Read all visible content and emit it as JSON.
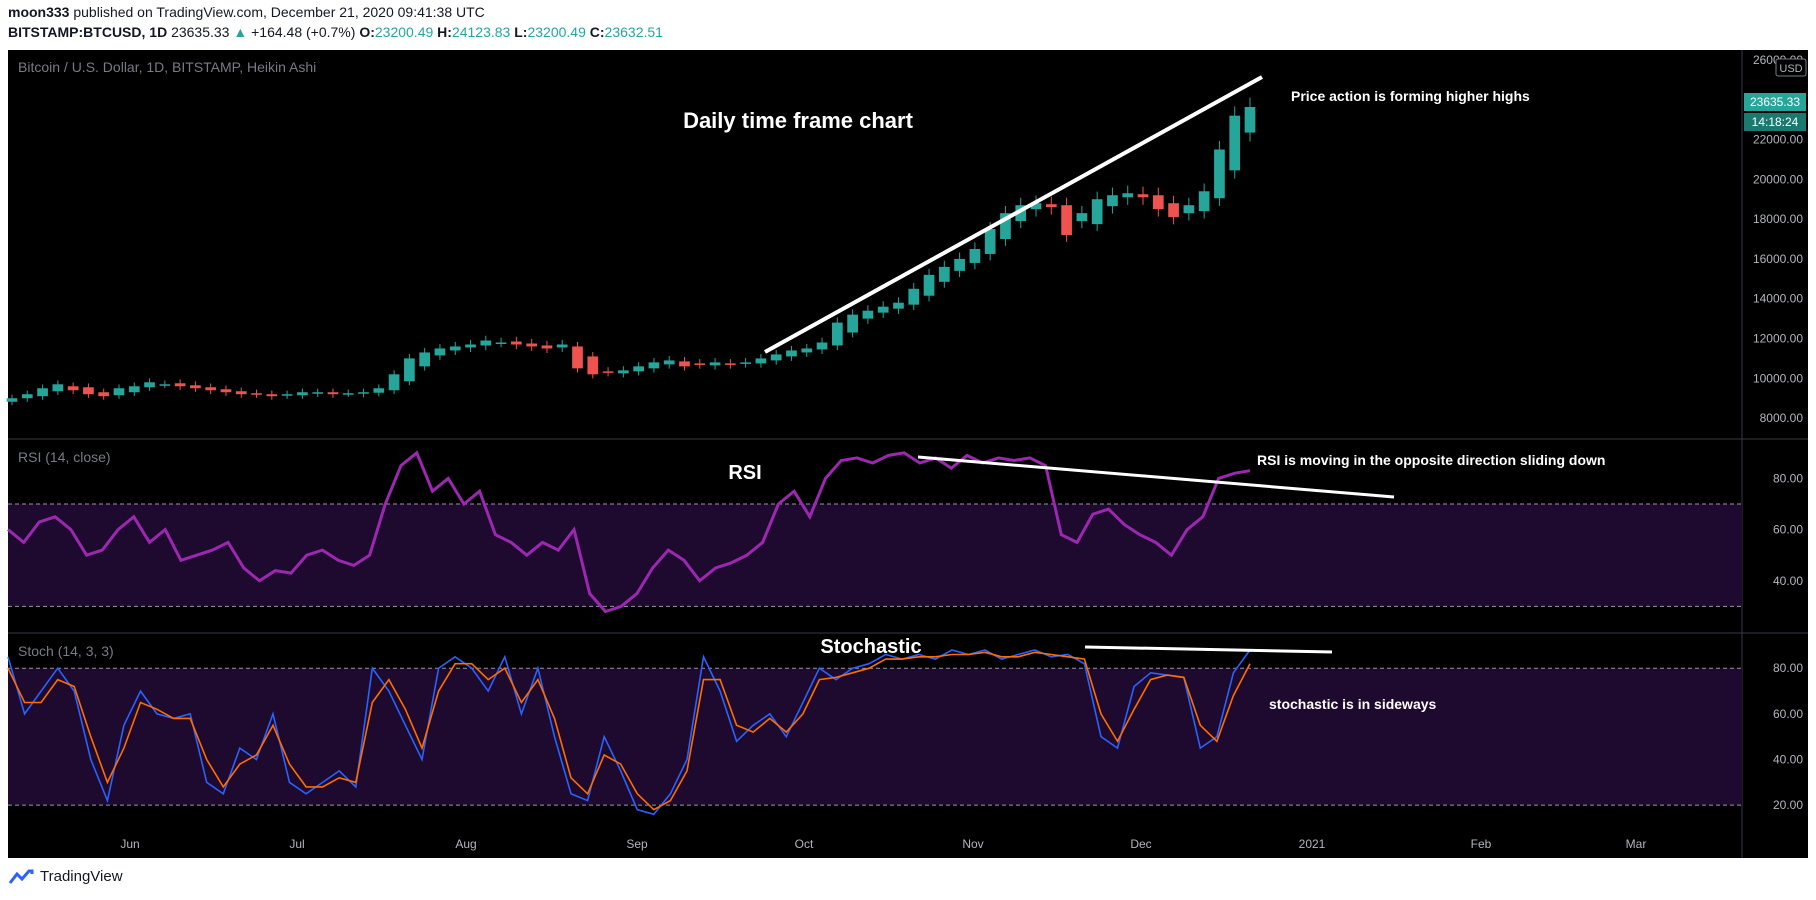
{
  "header": {
    "user": "moon333",
    "published": "published on TradingView.com, December 21, 2020 09:41:38 UTC",
    "symbol": "BITSTAMP:BTCUSD, 1D",
    "last": "23635.33",
    "change_arrow": "▲",
    "change": "+164.48 (+0.7%)",
    "o_label": "O:",
    "o": "23200.49",
    "h_label": "H:",
    "h": "24123.83",
    "l_label": "L:",
    "l": "23200.49",
    "c_label": "C:",
    "c": "23632.51"
  },
  "footer": {
    "brand": "TradingView"
  },
  "colors": {
    "up": "#26a69a",
    "down": "#ef5350",
    "rsi": "#9c27b0",
    "stoch_k": "#2962ff",
    "stoch_d": "#ff6d00",
    "band": "#1e0a2e"
  },
  "chart_data": [
    {
      "type": "candlestick",
      "title": "Bitcoin / U.S. Dollar, 1D, BITSTAMP, Heikin Ashi",
      "annotation_title": "Daily time frame chart",
      "annotation_note": "Price action is forming higher highs",
      "x_ticks": [
        "Jun",
        "Jul",
        "Aug",
        "Sep",
        "Oct",
        "Nov",
        "Dec",
        "2021",
        "Feb",
        "Mar"
      ],
      "y_ticks": [
        "8000.00",
        "10000.00",
        "12000.00",
        "14000.00",
        "16000.00",
        "18000.00",
        "20000.00",
        "22000.00",
        "26000.00"
      ],
      "ylim": [
        7000,
        26500
      ],
      "currency_label": "USD",
      "price_label": "23635.33",
      "countdown_label": "14:18:24",
      "close_series": [
        9000,
        9200,
        9500,
        9700,
        9400,
        9200,
        9100,
        9500,
        9600,
        9800,
        9700,
        9600,
        9500,
        9400,
        9300,
        9200,
        9200,
        9100,
        9200,
        9300,
        9300,
        9200,
        9250,
        9300,
        9500,
        10200,
        11000,
        11300,
        11500,
        11600,
        11700,
        11900,
        11800,
        11700,
        11600,
        11500,
        11700,
        10500,
        10200,
        10300,
        10400,
        10600,
        10800,
        10900,
        10600,
        10700,
        10800,
        10700,
        10800,
        11000,
        11200,
        11400,
        11500,
        11800,
        12800,
        13200,
        13400,
        13600,
        13800,
        14500,
        15200,
        15600,
        16000,
        16500,
        17500,
        18300,
        18700,
        18800,
        18600,
        17200,
        18300,
        19000,
        19200,
        19300,
        19100,
        18500,
        18100,
        18700,
        19400,
        21500,
        23200,
        23635
      ]
    },
    {
      "type": "line",
      "title": "RSI (14, close)",
      "annotation_title": "RSI",
      "annotation_note": "RSI is moving in the opposite direction sliding down",
      "y_ticks": [
        "80.00",
        "60.00",
        "40.00"
      ],
      "levels": [
        70,
        30
      ],
      "ylim": [
        20,
        95
      ],
      "series": [
        {
          "values": [
            60,
            55,
            63,
            65,
            60,
            50,
            52,
            60,
            65,
            55,
            60,
            48,
            50,
            52,
            55,
            45,
            40,
            44,
            43,
            50,
            52,
            48,
            46,
            50,
            70,
            85,
            90,
            75,
            80,
            70,
            75,
            58,
            55,
            50,
            55,
            52,
            60,
            35,
            28,
            30,
            35,
            45,
            52,
            48,
            40,
            45,
            47,
            50,
            55,
            70,
            75,
            65,
            80,
            87,
            88,
            86,
            89,
            90,
            86,
            88,
            84,
            89,
            86,
            88,
            87,
            88,
            85,
            58,
            55,
            66,
            68,
            62,
            58,
            55,
            50,
            60,
            65,
            80,
            82,
            83
          ]
        }
      ]
    },
    {
      "type": "line",
      "title": "Stoch (14, 3, 3)",
      "annotation_title": "Stochastic",
      "annotation_note": "stochastic is in sideways",
      "y_ticks": [
        "80.00",
        "60.00",
        "40.00",
        "20.00"
      ],
      "levels": [
        80,
        20
      ],
      "ylim": [
        10,
        95
      ],
      "series": [
        {
          "values": [
            85,
            60,
            70,
            80,
            70,
            40,
            22,
            55,
            70,
            60,
            58,
            60,
            30,
            25,
            45,
            40,
            60,
            30,
            25,
            30,
            35,
            28,
            80,
            70,
            55,
            40,
            80,
            85,
            80,
            70,
            85,
            60,
            80,
            50,
            25,
            22,
            50,
            35,
            18,
            16,
            25,
            40,
            85,
            70,
            48,
            55,
            60,
            50,
            65,
            80,
            75,
            80,
            82,
            86,
            84,
            86,
            84,
            88,
            86,
            88,
            84,
            86,
            88,
            85,
            86,
            82,
            50,
            45,
            72,
            78,
            77,
            76,
            45,
            50,
            78,
            88
          ]
        },
        {
          "values": [
            80,
            65,
            65,
            75,
            72,
            50,
            30,
            45,
            65,
            62,
            58,
            58,
            40,
            28,
            38,
            42,
            55,
            38,
            28,
            28,
            32,
            30,
            65,
            75,
            62,
            45,
            70,
            82,
            82,
            75,
            80,
            65,
            75,
            58,
            32,
            25,
            42,
            38,
            25,
            18,
            22,
            35,
            75,
            75,
            55,
            52,
            58,
            52,
            60,
            75,
            76,
            78,
            80,
            84,
            84,
            85,
            85,
            86,
            86,
            87,
            85,
            85,
            87,
            86,
            85,
            84,
            60,
            48,
            62,
            75,
            77,
            76,
            55,
            48,
            68,
            82
          ]
        }
      ]
    }
  ]
}
